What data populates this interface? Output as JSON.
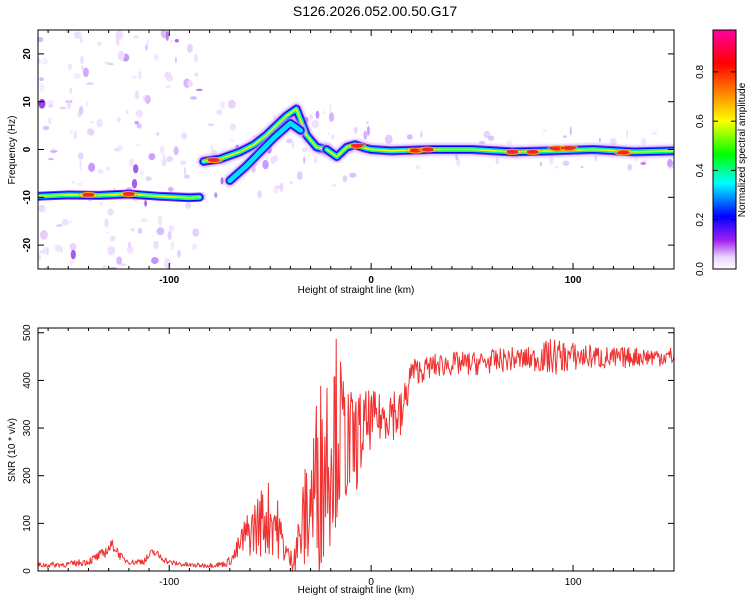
{
  "title": "S126.2026.052.00.50.G17",
  "chart_data": [
    {
      "type": "heatmap",
      "xlabel": "Height of straight line (km)",
      "ylabel": "Frequency (Hz)",
      "xlim": [
        -165,
        150
      ],
      "ylim": [
        -25,
        25
      ],
      "x_ticks": [
        -100,
        0,
        100
      ],
      "x_tick_labels": [
        "-100",
        "0",
        "100"
      ],
      "y_ticks": [
        -20,
        -10,
        0,
        10,
        20
      ],
      "y_tick_labels": [
        "-20",
        "-10",
        "0",
        "10",
        "20"
      ],
      "colorbar": {
        "label": "Normalized spectral amplitude",
        "range": [
          0,
          0.97
        ],
        "ticks": [
          0.0,
          0.2,
          0.4,
          0.6,
          0.8
        ],
        "tick_labels": [
          "0.0",
          "0.2",
          "0.4",
          "0.6",
          "0.8"
        ],
        "colors": [
          "#ffffff",
          "#a020f0",
          "#0000ff",
          "#00ffff",
          "#00ff00",
          "#ffff00",
          "#ff8000",
          "#ff0000",
          "#ff00a0"
        ]
      },
      "ridge": {
        "segments": [
          {
            "x": [
              -165,
              -150,
              -135,
              -120,
              -105,
              -90,
              -85
            ],
            "y": [
              -9.8,
              -9.5,
              -9.6,
              -9.3,
              -9.8,
              -10.1,
              -10.0
            ]
          },
          {
            "x": [
              -83,
              -75,
              -65,
              -58,
              -52,
              -47,
              -42,
              -37,
              -32,
              -27,
              -22
            ],
            "y": [
              -2.5,
              -2.0,
              -0.5,
              1.0,
              3.0,
              5.0,
              7.0,
              8.5,
              3.0,
              0.5,
              0.0
            ]
          },
          {
            "x": [
              -70,
              -62,
              -55,
              -48,
              -40,
              -35
            ],
            "y": [
              -6.5,
              -3.5,
              -0.5,
              2.5,
              5.5,
              4.0
            ]
          },
          {
            "x": [
              -22,
              -17,
              -12,
              -8,
              -3,
              0,
              10,
              30,
              50,
              70,
              90,
              110,
              130,
              150
            ],
            "y": [
              0.0,
              -1.5,
              0.5,
              1.0,
              0.3,
              0.0,
              -0.3,
              0.0,
              0.0,
              -0.5,
              -0.3,
              0.0,
              -0.5,
              -0.3
            ]
          }
        ]
      }
    },
    {
      "type": "line",
      "xlabel": "Height of straight line (km)",
      "ylabel": "SNR (10 * v/v)",
      "xlim": [
        -165,
        150
      ],
      "ylim": [
        0,
        510
      ],
      "x_ticks": [
        -100,
        0,
        100
      ],
      "x_tick_labels": [
        "-100",
        "0",
        "100"
      ],
      "y_ticks": [
        0,
        100,
        200,
        300,
        400,
        500
      ],
      "y_tick_labels": [
        "0",
        "100",
        "200",
        "300",
        "400",
        "500"
      ],
      "series": [
        {
          "name": "SNR",
          "color": "#f03232",
          "envelope": {
            "x": [
              -165,
              -150,
              -140,
              -133,
              -128,
              -123,
              -118,
              -112,
              -108,
              -100,
              -90,
              -80,
              -72,
              -68,
              -63,
              -58,
              -53,
              -48,
              -44,
              -40,
              -36,
              -32,
              -28,
              -24,
              -20,
              -17,
              -14,
              -10,
              -6,
              -3,
              0,
              5,
              10,
              15,
              18,
              20,
              25,
              30,
              40,
              50,
              60,
              70,
              80,
              90,
              100,
              110,
              120,
              130,
              140,
              150
            ],
            "mean": [
              12,
              14,
              20,
              35,
              55,
              25,
              18,
              22,
              40,
              18,
              12,
              12,
              15,
              30,
              70,
              90,
              110,
              110,
              60,
              20,
              60,
              120,
              170,
              220,
              280,
              300,
              280,
              260,
              280,
              300,
              320,
              320,
              340,
              320,
              380,
              420,
              420,
              430,
              435,
              435,
              440,
              445,
              445,
              450,
              450,
              450,
              445,
              450,
              450,
              450
            ],
            "amp": [
              6,
              6,
              8,
              12,
              12,
              8,
              6,
              8,
              10,
              6,
              5,
              5,
              6,
              15,
              40,
              60,
              80,
              80,
              40,
              20,
              60,
              120,
              180,
              220,
              220,
              200,
              150,
              120,
              100,
              80,
              60,
              50,
              60,
              60,
              40,
              30,
              25,
              25,
              25,
              25,
              25,
              25,
              25,
              40,
              30,
              25,
              25,
              20,
              20,
              20
            ]
          }
        }
      ]
    }
  ]
}
